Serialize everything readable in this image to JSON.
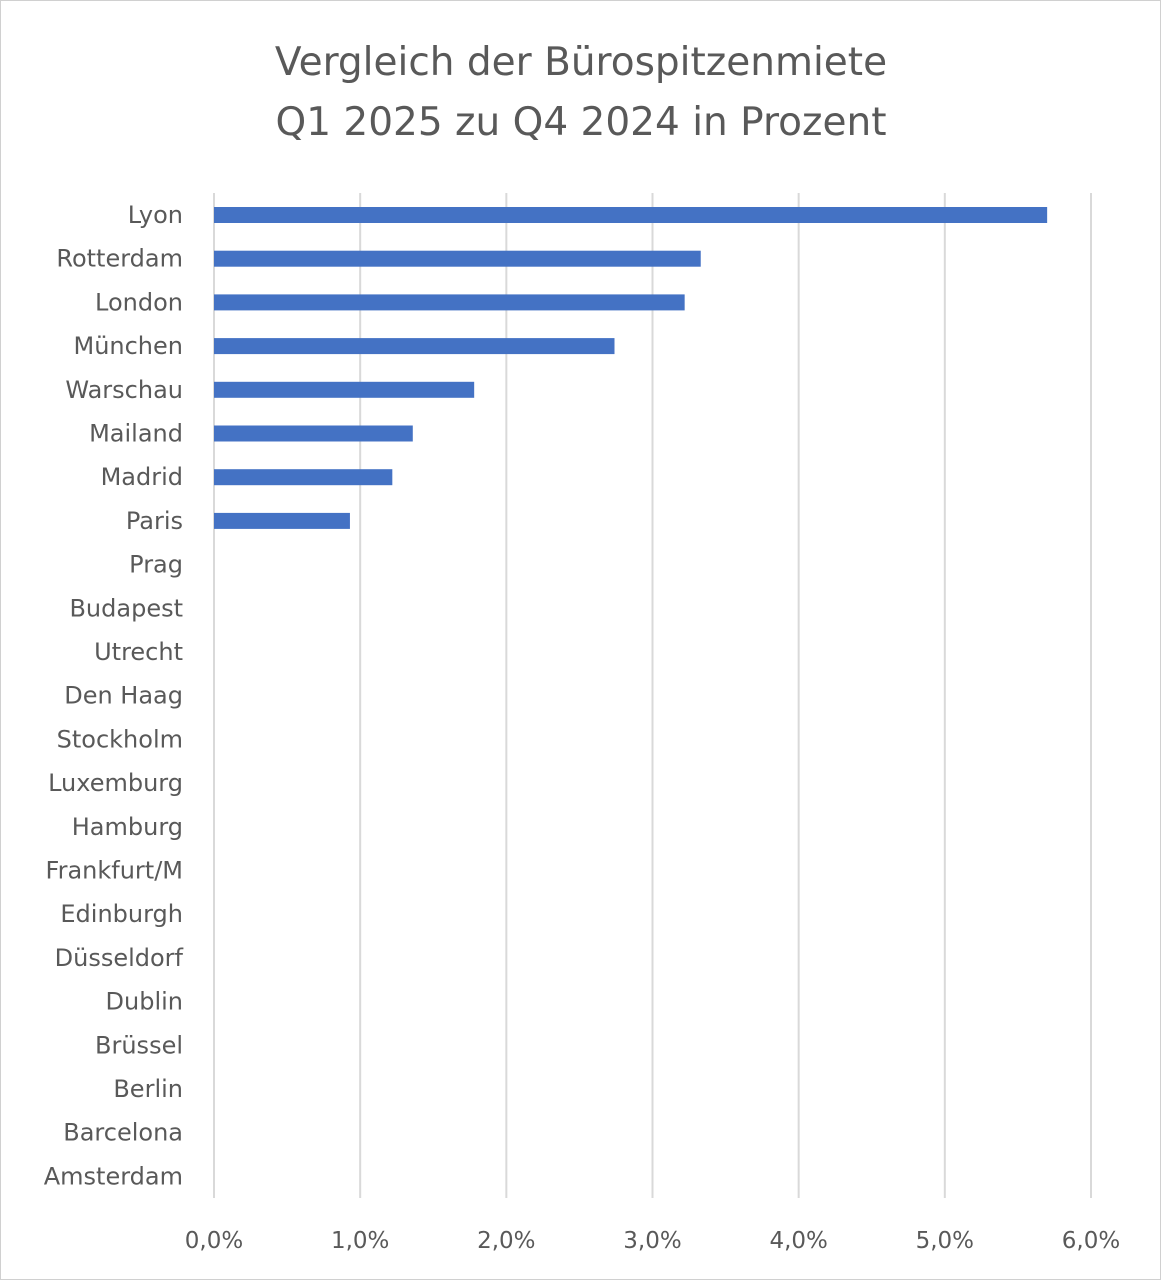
{
  "chart_data": {
    "type": "bar",
    "orientation": "horizontal",
    "title": [
      "Vergleich der Bürospitzenmiete",
      "Q1 2025 zu Q4 2024 in Prozent"
    ],
    "categories": [
      "Lyon",
      "Rotterdam",
      "London",
      "München",
      "Warschau",
      "Mailand",
      "Madrid",
      "Paris",
      "Prag",
      "Budapest",
      "Utrecht",
      "Den Haag",
      "Stockholm",
      "Luxemburg",
      "Hamburg",
      "Frankfurt/M",
      "Edinburgh",
      "Düsseldorf",
      "Dublin",
      "Brüssel",
      "Berlin",
      "Barcelona",
      "Amsterdam"
    ],
    "values": [
      5.7,
      3.33,
      3.22,
      2.74,
      1.78,
      1.36,
      1.22,
      0.93,
      0,
      0,
      0,
      0,
      0,
      0,
      0,
      0,
      0,
      0,
      0,
      0,
      0,
      0,
      0
    ],
    "xlim": [
      0,
      6
    ],
    "x_ticks": [
      0,
      1,
      2,
      3,
      4,
      5,
      6
    ],
    "x_tick_labels": [
      "0,0%",
      "1,0%",
      "2,0%",
      "3,0%",
      "4,0%",
      "5,0%",
      "6,0%"
    ],
    "xlabel": "",
    "ylabel": "",
    "grid": true,
    "legend": "none",
    "bar_color": "#4472c4"
  }
}
